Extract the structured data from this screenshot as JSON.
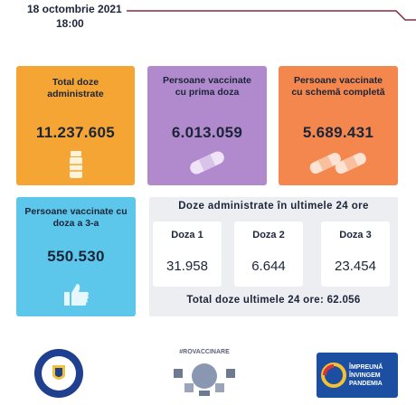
{
  "header": {
    "date": "18 octombrie 2021",
    "time": "18:00"
  },
  "cards": [
    {
      "title": "Total doze administrate",
      "value": "11.237.605"
    },
    {
      "title": "Persoane vaccinate cu prima doza",
      "value": "6.013.059"
    },
    {
      "title": "Persoane vaccinate cu schemă completă",
      "value": "5.689.431"
    },
    {
      "title": "Persoane vaccinate cu doza a 3-a",
      "value": "550.530"
    }
  ],
  "last24": {
    "title": "Doze administrate în ultimele 24 ore",
    "doses": [
      {
        "label": "Doza 1",
        "value": "31.958"
      },
      {
        "label": "Doza 2",
        "value": "6.644"
      },
      {
        "label": "Doza 3",
        "value": "23.454"
      }
    ],
    "total": "Total doze ultimele 24 ore: 62.056"
  },
  "footer": {
    "campaign": "#ROVACCINARE",
    "slogan": "ÎMPREUNĂ ÎNVINGEM PANDEMIA"
  }
}
